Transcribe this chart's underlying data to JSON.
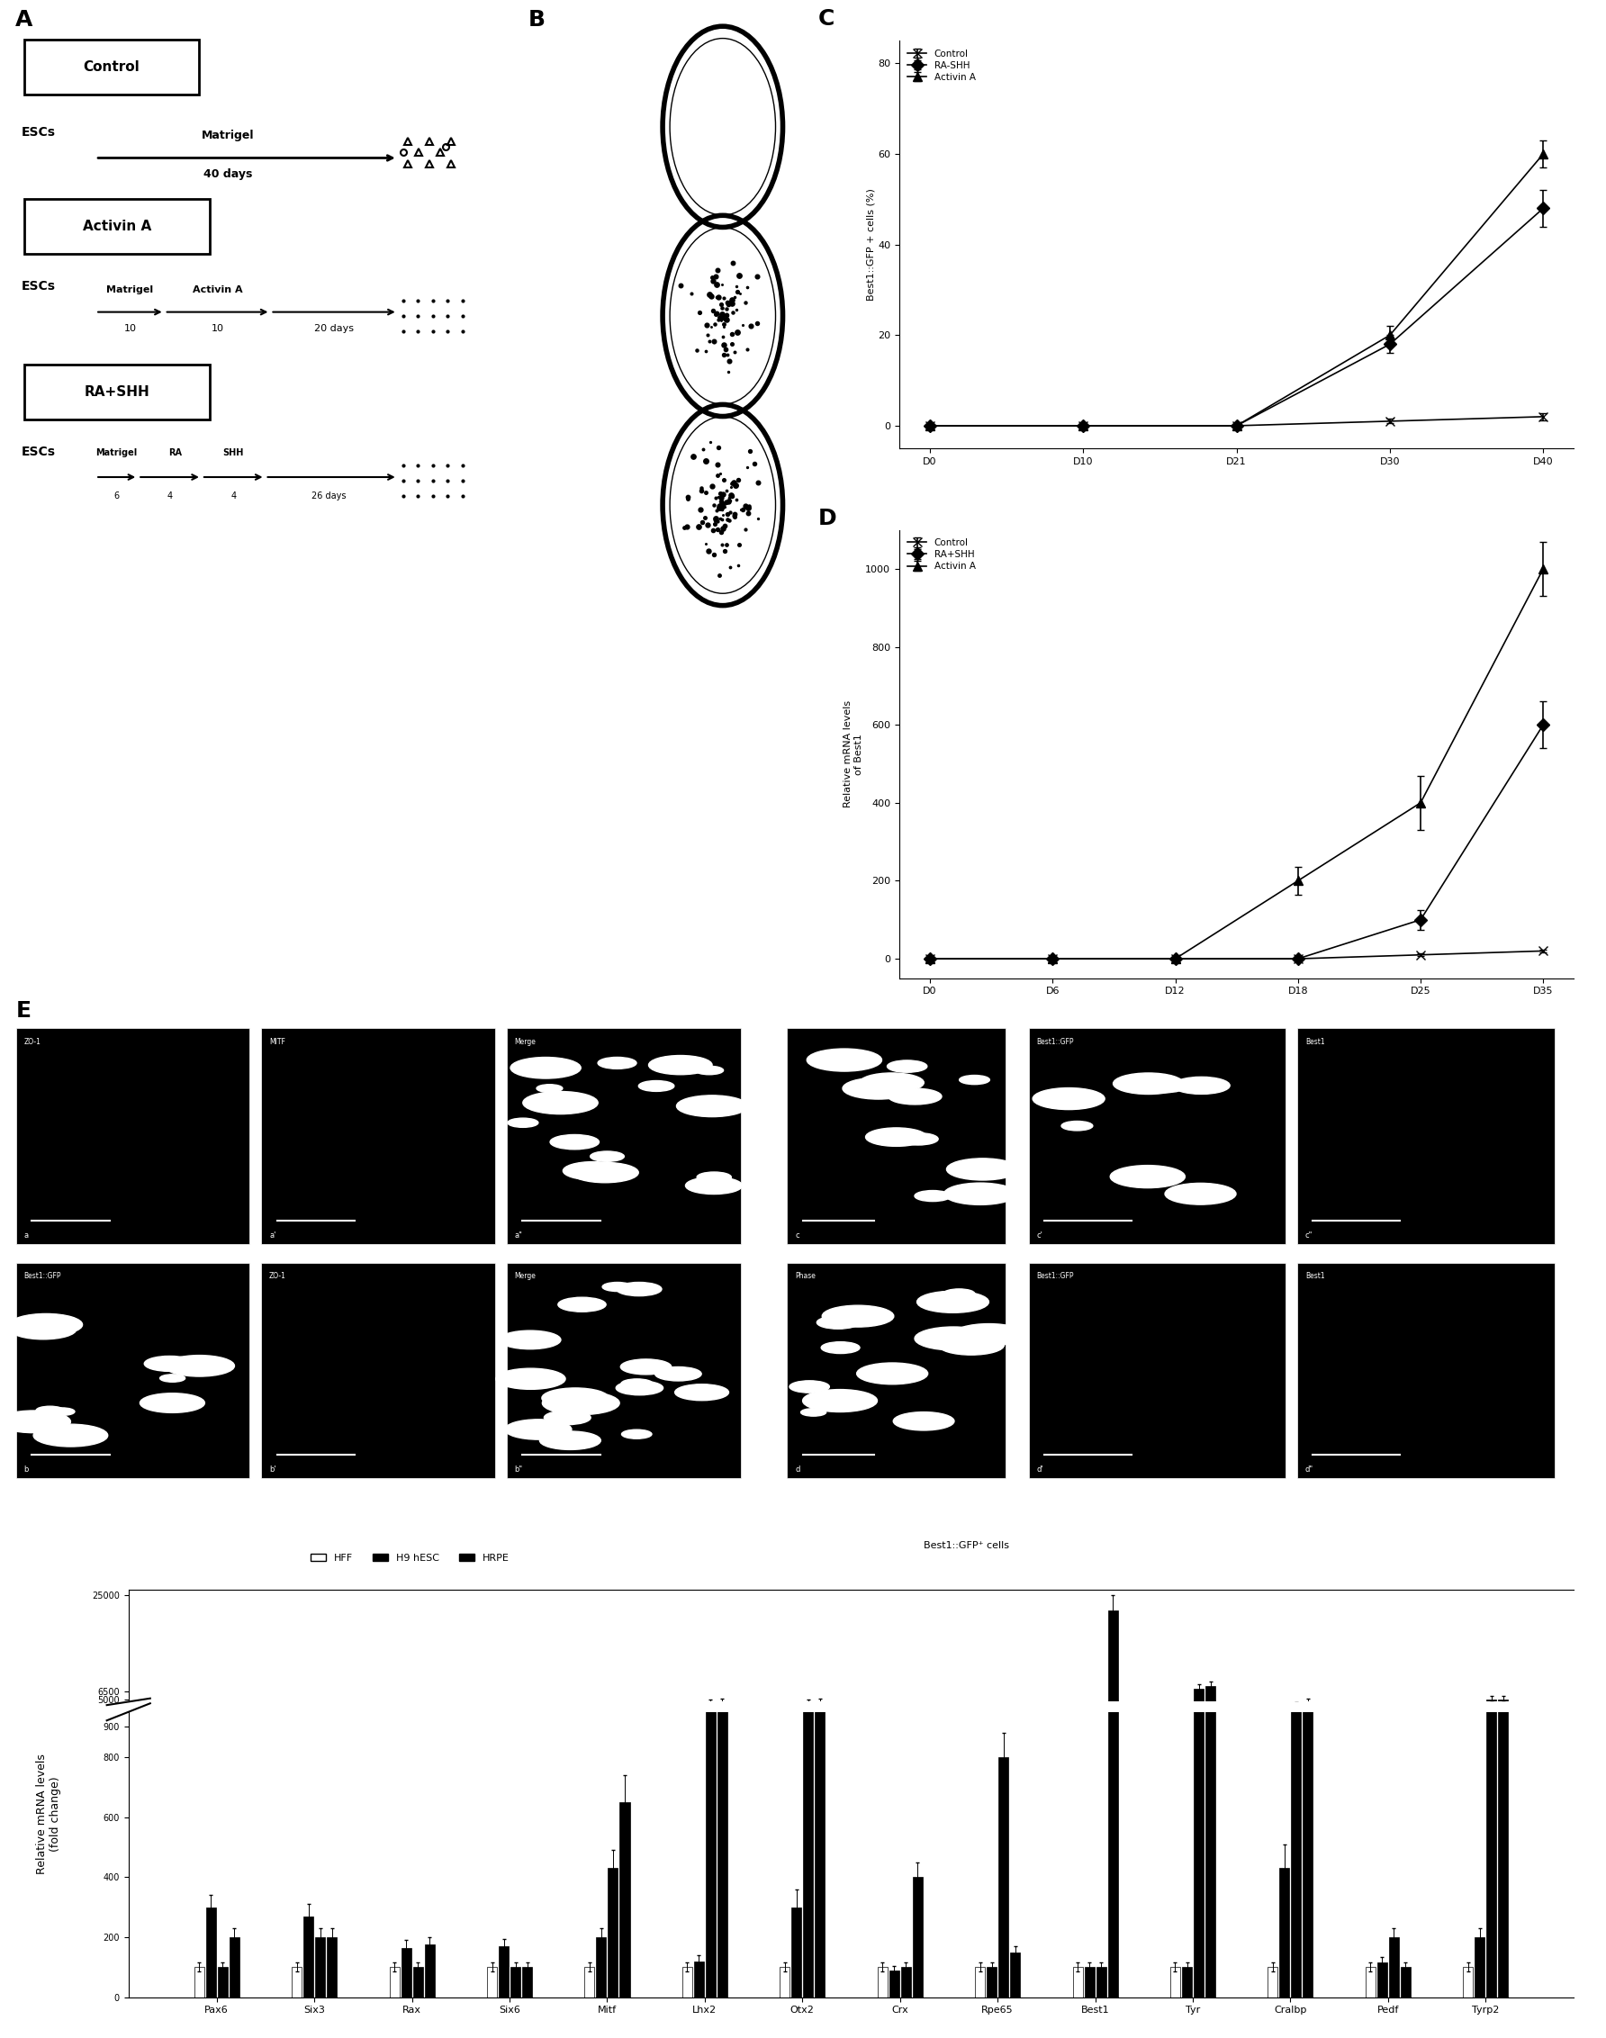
{
  "panel_C": {
    "xlabel_ticks": [
      "D0",
      "D10",
      "D21",
      "D30",
      "D40"
    ],
    "ylabel": "Best1::GFP + cells (%)",
    "yticks": [
      0,
      20,
      40,
      60,
      80
    ],
    "ylim": [
      -5,
      85
    ],
    "series": {
      "Control": {
        "x": [
          0,
          1,
          2,
          3,
          4
        ],
        "y": [
          0,
          0,
          0,
          1,
          2
        ],
        "yerr": [
          0,
          0,
          0,
          0.5,
          0.8
        ],
        "marker": "x",
        "label": "Control"
      },
      "RA-SHH": {
        "x": [
          0,
          1,
          2,
          3,
          4
        ],
        "y": [
          0,
          0,
          0,
          18,
          48
        ],
        "yerr": [
          0,
          0,
          0,
          2,
          4
        ],
        "marker": "D",
        "label": "RA-SHH"
      },
      "Activin A": {
        "x": [
          0,
          1,
          2,
          3,
          4
        ],
        "y": [
          0,
          0,
          0,
          20,
          60
        ],
        "yerr": [
          0,
          0,
          0,
          2,
          3
        ],
        "marker": "^",
        "label": "Activin A"
      }
    }
  },
  "panel_D": {
    "xlabel_ticks": [
      "D0",
      "D6",
      "D12",
      "D18",
      "D25",
      "D35"
    ],
    "ylabel": "Relative mRNA levels\nof Best1",
    "yticks": [
      0,
      200,
      400,
      600,
      800,
      1000
    ],
    "ylim": [
      -50,
      1100
    ],
    "series": {
      "Control": {
        "x": [
          0,
          1,
          2,
          3,
          4,
          5
        ],
        "y": [
          0,
          0,
          0,
          0,
          10,
          20
        ],
        "yerr": [
          0,
          0,
          0,
          0,
          4,
          4
        ],
        "marker": "x",
        "label": "Control"
      },
      "RA+SHH": {
        "x": [
          0,
          1,
          2,
          3,
          4,
          5
        ],
        "y": [
          0,
          0,
          0,
          0,
          100,
          600
        ],
        "yerr": [
          0,
          0,
          0,
          0,
          25,
          60
        ],
        "marker": "D",
        "label": "RA+SHH"
      },
      "Activin A": {
        "x": [
          0,
          1,
          2,
          3,
          4,
          5
        ],
        "y": [
          0,
          0,
          0,
          200,
          400,
          1000
        ],
        "yerr": [
          0,
          0,
          0,
          35,
          70,
          70
        ],
        "marker": "^",
        "label": "Activin A"
      }
    }
  },
  "panel_F": {
    "genes": [
      "Pax6",
      "Six3",
      "Rax",
      "Six6",
      "Mitf",
      "Lhx2",
      "Otx2",
      "Crx",
      "Rpe65",
      "Best1",
      "Tyr",
      "Cralbp",
      "Pedf",
      "Tyrp2"
    ],
    "ylabel": "Relative mRNA levels\n(fold change)",
    "HFF": [
      100,
      100,
      100,
      100,
      100,
      100,
      100,
      100,
      100,
      100,
      100,
      100,
      100,
      100
    ],
    "H9hESC": [
      300,
      270,
      165,
      170,
      200,
      120,
      300,
      90,
      100,
      100,
      100,
      430,
      115,
      200
    ],
    "HRPE": [
      100,
      200,
      100,
      100,
      430,
      800,
      800,
      100,
      800,
      800,
      800,
      800,
      100,
      800
    ],
    "GFP": [
      200,
      200,
      175,
      100,
      650,
      500,
      900,
      400,
      100,
      800,
      800,
      800,
      100,
      5000
    ],
    "HFF_err": [
      15,
      15,
      15,
      15,
      15,
      15,
      15,
      15,
      15,
      15,
      15,
      15,
      15,
      15
    ],
    "H9hESC_err": [
      40,
      40,
      25,
      25,
      30,
      20,
      60,
      15,
      15,
      15,
      15,
      80,
      20,
      30
    ],
    "HRPE_err": [
      15,
      30,
      15,
      15,
      60,
      80,
      80,
      15,
      80,
      80,
      80,
      80,
      15,
      80
    ],
    "GFP_err": [
      30,
      30,
      25,
      15,
      90,
      60,
      100,
      50,
      15,
      80,
      80,
      80,
      15,
      600
    ],
    "HRPE_tall": [
      100,
      200,
      100,
      100,
      430,
      4500,
      4500,
      100,
      800,
      100,
      7000,
      4000,
      200,
      5000
    ],
    "GFP_tall": [
      200,
      200,
      175,
      100,
      650,
      4500,
      4500,
      400,
      150,
      22000,
      7500,
      4500,
      100,
      5000
    ],
    "HRPE_tall_err": [
      15,
      30,
      15,
      15,
      60,
      500,
      500,
      15,
      80,
      15,
      800,
      400,
      30,
      600
    ],
    "GFP_tall_err": [
      30,
      30,
      25,
      15,
      90,
      600,
      600,
      50,
      20,
      3000,
      800,
      600,
      15,
      600
    ]
  },
  "background_color": "#ffffff"
}
